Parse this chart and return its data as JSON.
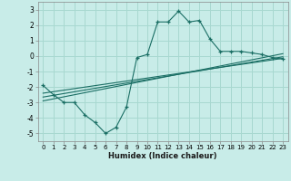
{
  "title": "",
  "xlabel": "Humidex (Indice chaleur)",
  "background_color": "#c8ece8",
  "grid_color": "#a8d8d0",
  "line_color": "#1a6e64",
  "xlim": [
    -0.5,
    23.5
  ],
  "ylim": [
    -5.5,
    3.5
  ],
  "xticks": [
    0,
    1,
    2,
    3,
    4,
    5,
    6,
    7,
    8,
    9,
    10,
    11,
    12,
    13,
    14,
    15,
    16,
    17,
    18,
    19,
    20,
    21,
    22,
    23
  ],
  "yticks": [
    -5,
    -4,
    -3,
    -2,
    -1,
    0,
    1,
    2,
    3
  ],
  "main_x": [
    0,
    1,
    2,
    3,
    4,
    5,
    6,
    7,
    8,
    9,
    10,
    11,
    12,
    13,
    14,
    15,
    16,
    17,
    18,
    19,
    20,
    21,
    22,
    23
  ],
  "main_y": [
    -1.9,
    -2.5,
    -3.0,
    -3.0,
    -3.8,
    -4.3,
    -5.0,
    -4.6,
    -3.3,
    -0.1,
    0.1,
    2.2,
    2.2,
    2.9,
    2.2,
    2.3,
    1.1,
    0.3,
    0.3,
    0.3,
    0.2,
    0.1,
    -0.1,
    -0.2
  ],
  "line1_x": [
    0,
    23
  ],
  "line1_y": [
    -2.4,
    -0.15
  ],
  "line2_x": [
    0,
    23
  ],
  "line2_y": [
    -2.65,
    -0.05
  ],
  "line3_x": [
    0,
    23
  ],
  "line3_y": [
    -2.9,
    0.15
  ]
}
